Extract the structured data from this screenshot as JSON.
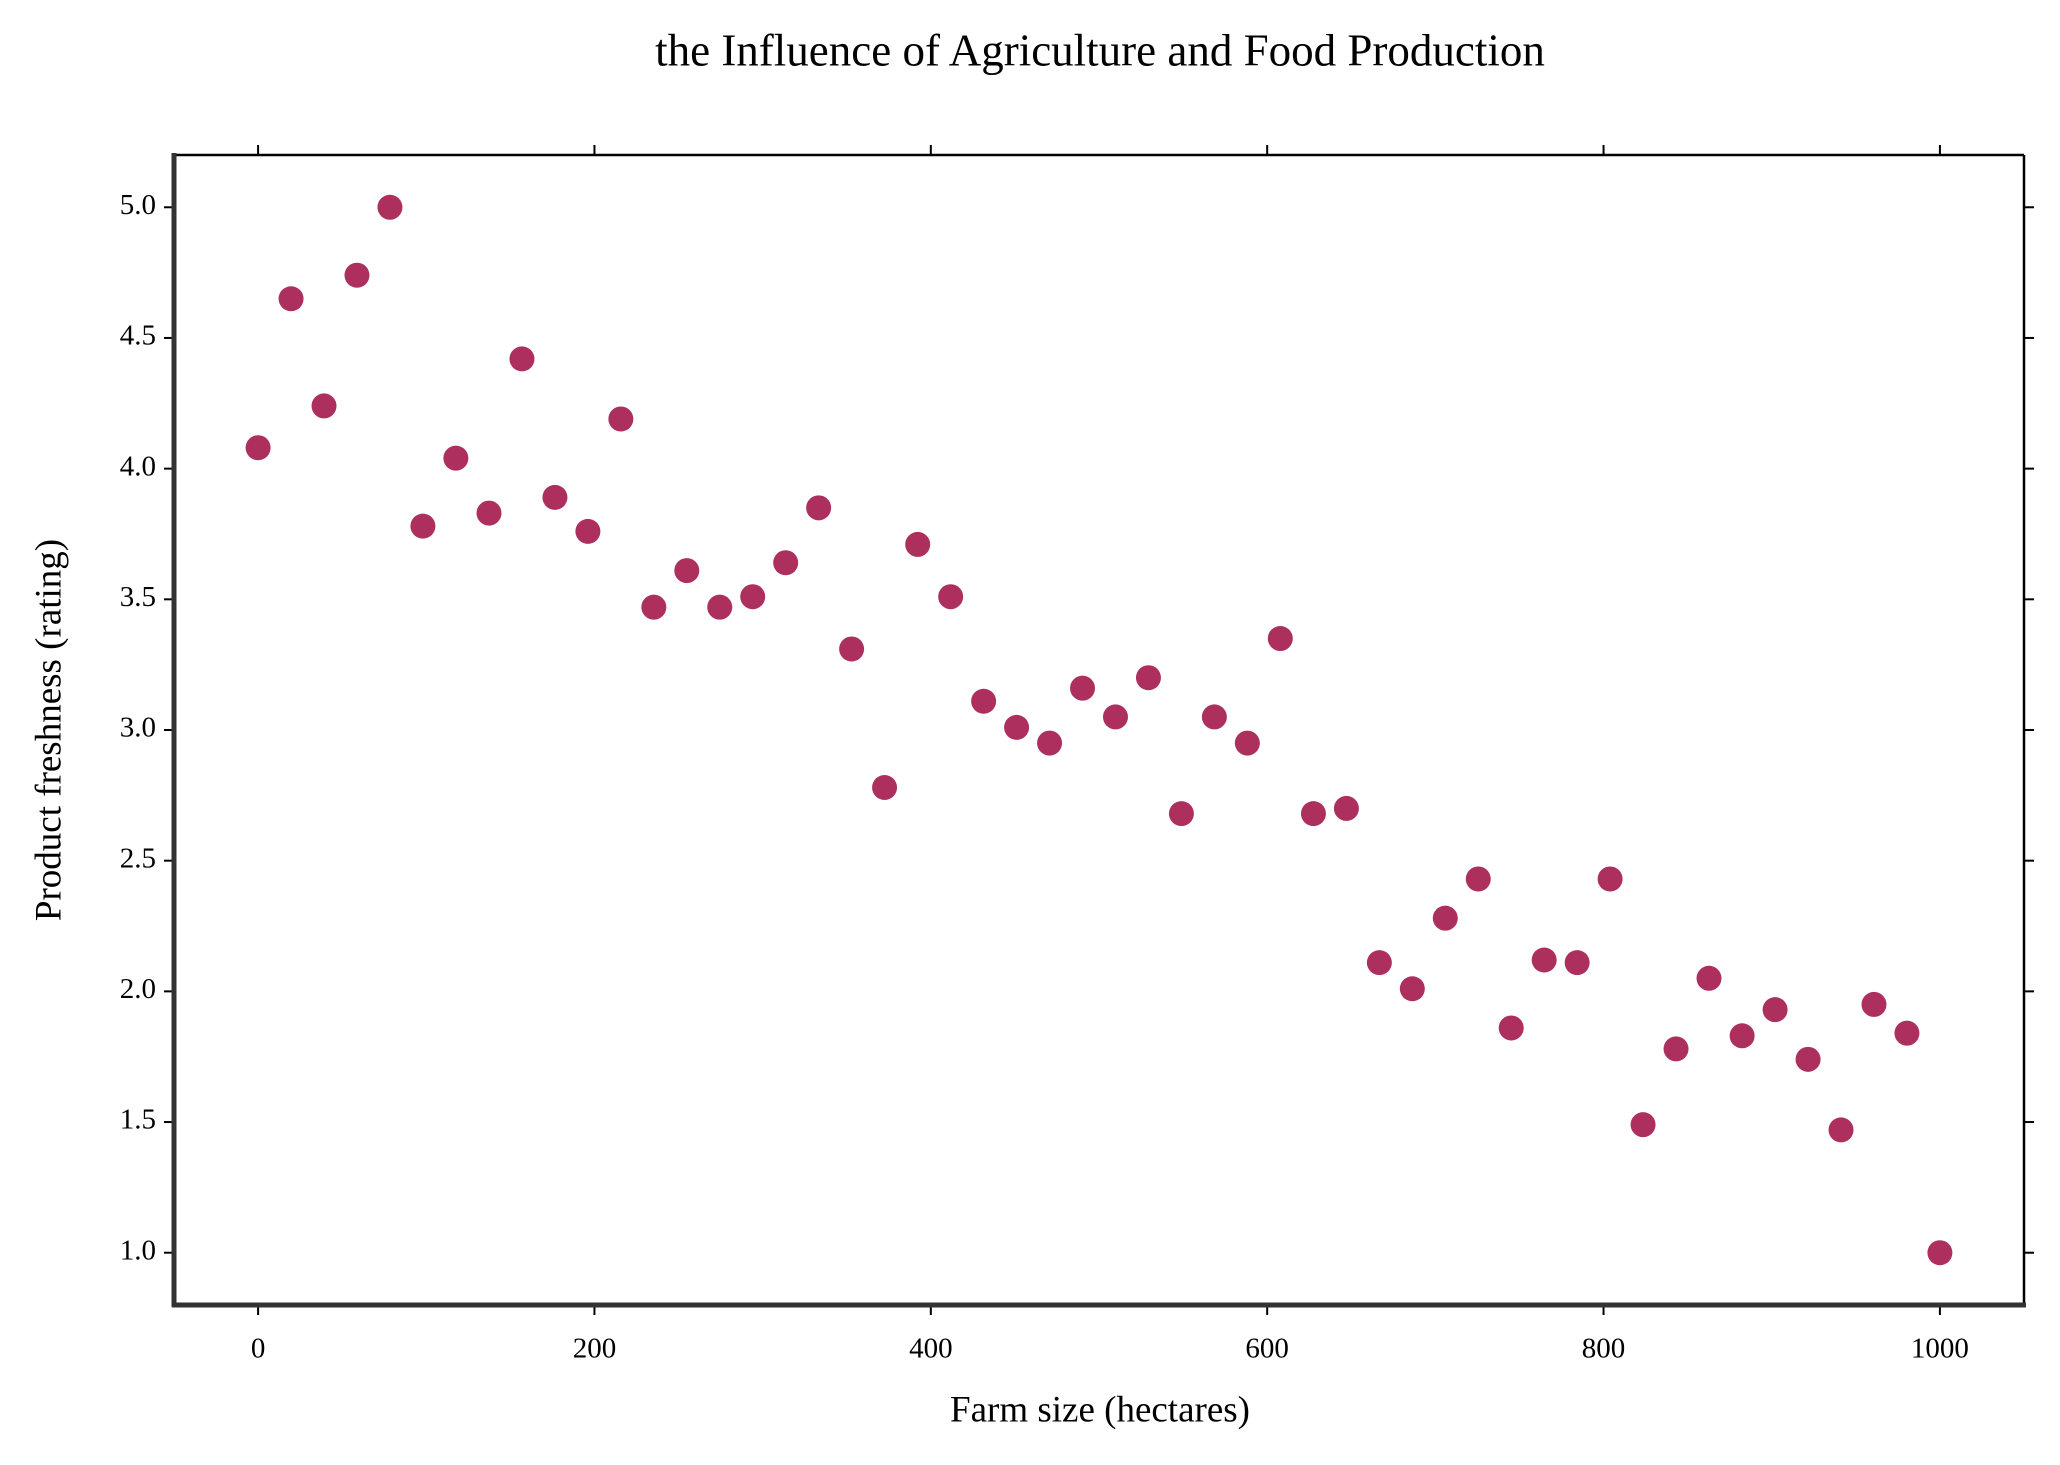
{
  "chart_data": {
    "type": "scatter",
    "title": "the Influence of Agriculture and Food Production",
    "x_label": "Farm size (hectares)",
    "y_label": "Product freshness (rating)",
    "color": "#ad2f5e",
    "x": [
      0,
      19.6,
      39.2,
      58.8,
      78.4,
      98,
      117.6,
      137.3,
      156.9,
      176.5,
      196.1,
      215.7,
      235.3,
      254.9,
      274.5,
      294.1,
      313.7,
      333.3,
      352.9,
      372.5,
      392.2,
      411.8,
      431.4,
      451,
      470.6,
      490.2,
      509.8,
      529.4,
      549,
      568.6,
      588.2,
      607.8,
      627.5,
      647.1,
      666.7,
      686.3,
      705.9,
      725.5,
      745.1,
      764.7,
      784.3,
      803.9,
      823.5,
      843.1,
      862.7,
      882.4,
      902,
      921.6,
      941.2,
      960.8,
      980.4,
      1000
    ],
    "values": [
      4.08,
      4.65,
      4.24,
      4.74,
      5.0,
      3.78,
      4.04,
      3.83,
      4.42,
      3.89,
      3.76,
      4.19,
      3.47,
      3.61,
      3.47,
      3.51,
      3.64,
      3.85,
      3.31,
      2.78,
      3.71,
      3.51,
      3.11,
      3.01,
      2.95,
      3.16,
      3.05,
      3.2,
      2.68,
      3.05,
      2.95,
      3.35,
      2.68,
      2.7,
      2.11,
      2.01,
      2.28,
      2.43,
      1.86,
      2.12,
      2.11,
      2.43,
      1.49,
      1.78,
      2.05,
      1.83,
      1.93,
      1.74,
      1.47,
      1.95,
      1.84,
      1.0
    ],
    "xlim": [
      -50,
      1050
    ],
    "ylim": [
      0.8,
      5.2
    ],
    "xticks": [
      0,
      200,
      400,
      600,
      800,
      1000
    ],
    "yticks": [
      {
        "value": 1,
        "label": "1.0"
      },
      1.5,
      {
        "value": 2,
        "label": "2.0"
      },
      2.5,
      {
        "value": 3,
        "label": "3.0"
      },
      3.5,
      {
        "value": 4,
        "label": "4.0"
      },
      4.5,
      {
        "value": 5,
        "label": "5.0"
      }
    ]
  }
}
